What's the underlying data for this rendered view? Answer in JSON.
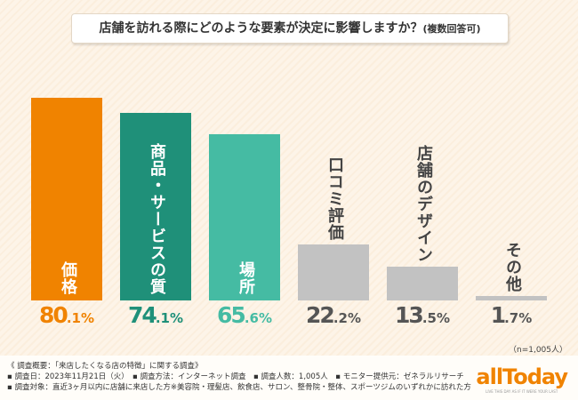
{
  "title": "店舗を訪れる際にどのような要素が決定に影響しますか？",
  "title_note": "(複数回答可)",
  "sample": "（n=1,005人）",
  "chart_data": {
    "type": "bar",
    "categories": [
      "価格",
      "商品・サービスの質",
      "場所",
      "口コミ評価",
      "店舗のデザイン",
      "その他"
    ],
    "values": [
      80.1,
      74.1,
      65.6,
      22.2,
      13.5,
      1.7
    ],
    "unit": "%",
    "value_labels": [
      [
        "80",
        ".1%"
      ],
      [
        "74",
        ".1%"
      ],
      [
        "65",
        ".6%"
      ],
      [
        "22",
        ".2%"
      ],
      [
        "13",
        ".5%"
      ],
      [
        "1",
        ".7%"
      ]
    ],
    "colors": [
      "#f08300",
      "#1f9079",
      "#45bba3",
      "#c2c2c2",
      "#c2c2c2",
      "#c2c2c2"
    ],
    "label_colors": [
      "#f08300",
      "#1f9079",
      "#45bba3",
      "#555555",
      "#555555",
      "#555555"
    ],
    "ylim": [
      0,
      100
    ]
  },
  "footer": {
    "line1": "《 調査概要：「来店したくなる店の特徴」に関する調査》",
    "line2": "▪ 調査日：2023年11月21日（火）　▪ 調査方法：インターネット調査　▪ 調査人数：1,005人　▪ モニター提供元：ゼネラルリサーチ",
    "line3": "▪ 調査対象：直近3ヶ月以内に店舗に来店した方※美容院・理髪店、飲食店、サロン、整骨院・整体、スポーツジムのいずれかに訪れた方"
  },
  "logo": {
    "text": "allToday",
    "tagline": "LIVE THIS DAY AS IF IT WERE YOUR LAST"
  }
}
